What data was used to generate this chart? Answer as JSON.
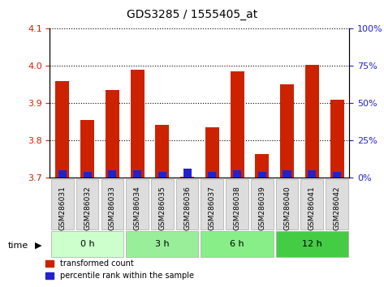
{
  "title": "GDS3285 / 1555405_at",
  "samples": [
    "GSM286031",
    "GSM286032",
    "GSM286033",
    "GSM286034",
    "GSM286035",
    "GSM286036",
    "GSM286037",
    "GSM286038",
    "GSM286039",
    "GSM286040",
    "GSM286041",
    "GSM286042"
  ],
  "transformed_count": [
    3.96,
    3.855,
    3.935,
    3.99,
    3.843,
    3.703,
    3.835,
    3.985,
    3.763,
    3.95,
    4.002,
    3.91
  ],
  "percentile_rank": [
    5,
    4,
    5,
    5,
    4,
    6,
    4,
    5,
    4,
    5,
    5,
    4
  ],
  "ylim_left": [
    3.7,
    4.1
  ],
  "ylim_right": [
    0,
    100
  ],
  "yticks_left": [
    3.7,
    3.8,
    3.9,
    4.0,
    4.1
  ],
  "yticks_right": [
    0,
    25,
    50,
    75,
    100
  ],
  "bar_color_red": "#cc2200",
  "bar_color_blue": "#2222cc",
  "groups": [
    {
      "label": "0 h",
      "indices": [
        0,
        1,
        2
      ],
      "color": "#ccffcc"
    },
    {
      "label": "3 h",
      "indices": [
        3,
        4,
        5
      ],
      "color": "#88ee88"
    },
    {
      "label": "6 h",
      "indices": [
        6,
        7,
        8
      ],
      "color": "#88ee88"
    },
    {
      "label": "12 h",
      "indices": [
        9,
        10,
        11
      ],
      "color": "#44cc44"
    }
  ],
  "time_label": "time",
  "legend_red": "transformed count",
  "legend_blue": "percentile rank within the sample",
  "baseline": 3.7,
  "percentile_scale_max": 100,
  "bar_width": 0.55,
  "background_color": "#ffffff",
  "plot_bg": "#ffffff",
  "tick_label_bg": "#dddddd"
}
